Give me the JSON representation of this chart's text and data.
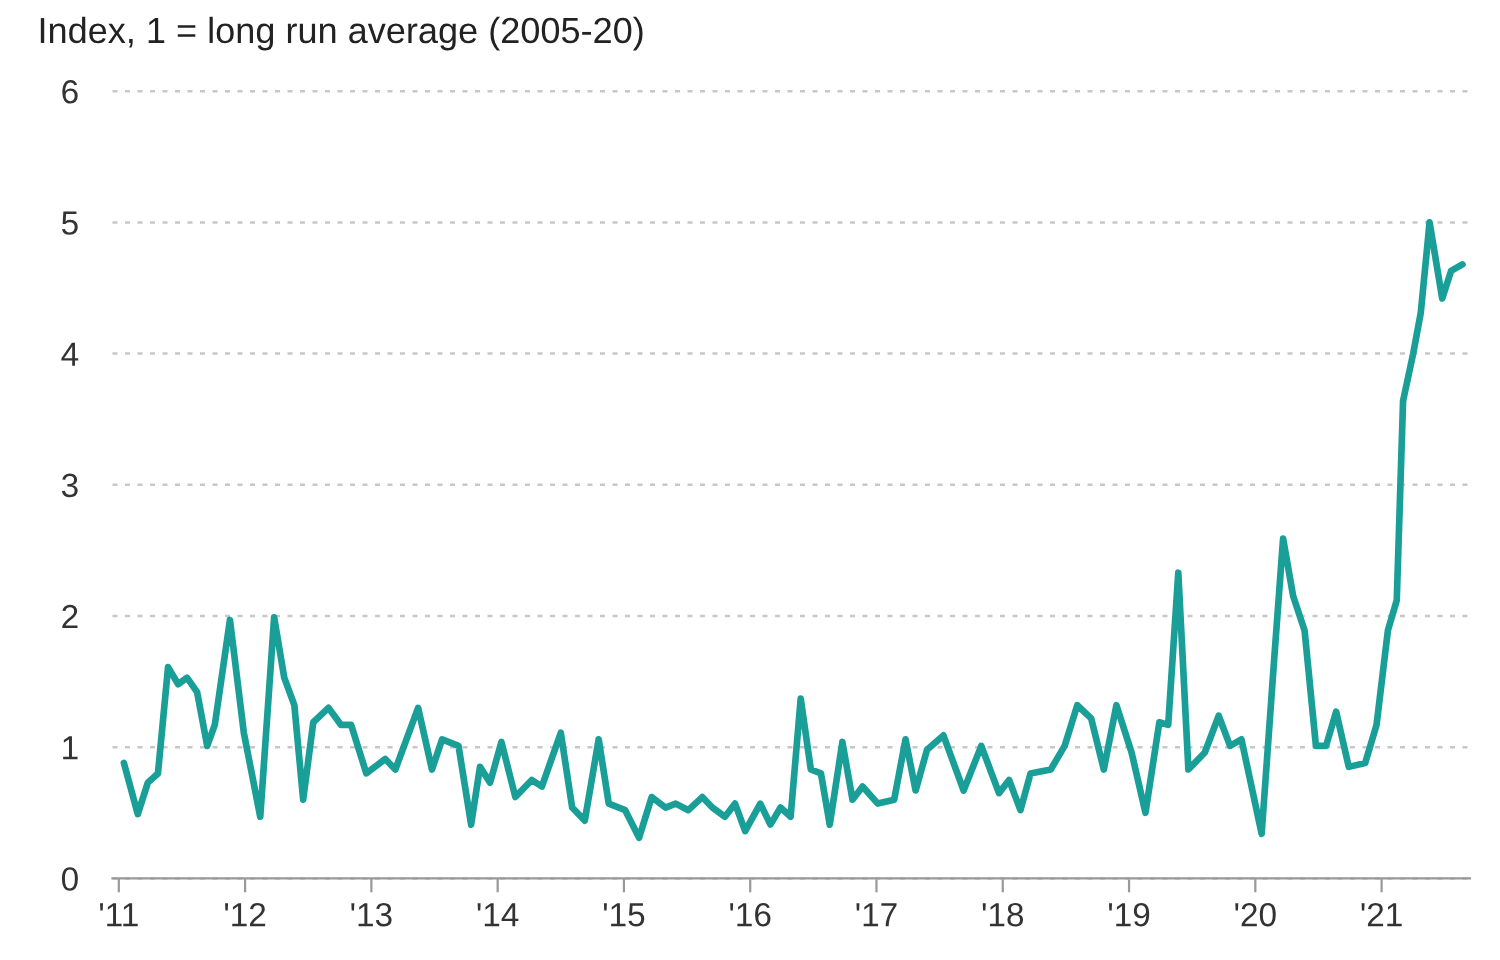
{
  "chart_data": {
    "type": "line",
    "subtitle": "Index, 1 = long run average (2005-20)",
    "x": [
      2011.04,
      2011.15,
      2011.23,
      2011.31,
      2011.39,
      2011.47,
      2011.54,
      2011.62,
      2011.7,
      2011.76,
      2011.88,
      2011.99,
      2012.12,
      2012.23,
      2012.31,
      2012.39,
      2012.46,
      2012.54,
      2012.66,
      2012.76,
      2012.84,
      2012.96,
      2013.11,
      2013.19,
      2013.37,
      2013.48,
      2013.56,
      2013.69,
      2013.79,
      2013.86,
      2013.94,
      2014.03,
      2014.14,
      2014.27,
      2014.35,
      2014.5,
      2014.59,
      2014.69,
      2014.8,
      2014.88,
      2015.01,
      2015.12,
      2015.22,
      2015.33,
      2015.41,
      2015.51,
      2015.62,
      2015.7,
      2015.8,
      2015.88,
      2015.96,
      2016.08,
      2016.16,
      2016.24,
      2016.32,
      2016.4,
      2016.48,
      2016.56,
      2016.63,
      2016.73,
      2016.81,
      2016.89,
      2017.01,
      2017.14,
      2017.23,
      2017.31,
      2017.4,
      2017.53,
      2017.69,
      2017.83,
      2017.97,
      2018.05,
      2018.14,
      2018.22,
      2018.38,
      2018.49,
      2018.59,
      2018.7,
      2018.8,
      2018.9,
      2019.02,
      2019.13,
      2019.24,
      2019.31,
      2019.39,
      2019.47,
      2019.6,
      2019.71,
      2019.8,
      2019.89,
      2020.05,
      2020.15,
      2020.22,
      2020.3,
      2020.39,
      2020.48,
      2020.56,
      2020.64,
      2020.74,
      2020.87,
      2020.96,
      2021.05,
      2021.12,
      2021.17,
      2021.25,
      2021.31,
      2021.38,
      2021.48,
      2021.55,
      2021.64
    ],
    "series": [
      {
        "color": "#1a9e98",
        "values": [
          0.88,
          0.49,
          0.73,
          0.8,
          1.61,
          1.48,
          1.53,
          1.42,
          1.01,
          1.17,
          1.97,
          1.11,
          0.47,
          1.99,
          1.53,
          1.32,
          0.6,
          1.19,
          1.3,
          1.17,
          1.17,
          0.8,
          0.91,
          0.83,
          1.3,
          0.83,
          1.06,
          1.01,
          0.41,
          0.85,
          0.73,
          1.04,
          0.62,
          0.75,
          0.7,
          1.11,
          0.54,
          0.44,
          1.06,
          0.57,
          0.52,
          0.31,
          0.62,
          0.54,
          0.57,
          0.52,
          0.62,
          0.54,
          0.47,
          0.57,
          0.36,
          0.57,
          0.41,
          0.54,
          0.47,
          1.37,
          0.83,
          0.8,
          0.41,
          1.04,
          0.6,
          0.7,
          0.57,
          0.6,
          1.06,
          0.67,
          0.98,
          1.09,
          0.67,
          1.01,
          0.65,
          0.75,
          0.52,
          0.8,
          0.83,
          1.01,
          1.32,
          1.22,
          0.83,
          1.32,
          0.96,
          0.5,
          1.19,
          1.17,
          2.33,
          0.83,
          0.96,
          1.24,
          1.01,
          1.06,
          0.34,
          1.68,
          2.59,
          2.15,
          1.89,
          1.01,
          1.01,
          1.27,
          0.85,
          0.88,
          1.17,
          1.89,
          2.12,
          3.64,
          4.0,
          4.31,
          5.0,
          4.42,
          4.63,
          4.68
        ]
      }
    ],
    "xlim": [
      2010.95,
      2021.7
    ],
    "xticks": [
      {
        "value": 2011,
        "label": "'11"
      },
      {
        "value": 2012,
        "label": "'12"
      },
      {
        "value": 2013,
        "label": "'13"
      },
      {
        "value": 2014,
        "label": "'14"
      },
      {
        "value": 2015,
        "label": "'15"
      },
      {
        "value": 2016,
        "label": "'16"
      },
      {
        "value": 2017,
        "label": "'17"
      },
      {
        "value": 2018,
        "label": "'18"
      },
      {
        "value": 2019,
        "label": "'19"
      },
      {
        "value": 2020,
        "label": "'20"
      },
      {
        "value": 2021,
        "label": "'21"
      }
    ],
    "ylim": [
      0,
      6
    ],
    "yticks": [
      0,
      1,
      2,
      3,
      4,
      5,
      6
    ],
    "grid": "y",
    "marker": "none",
    "line_style": "solid"
  }
}
